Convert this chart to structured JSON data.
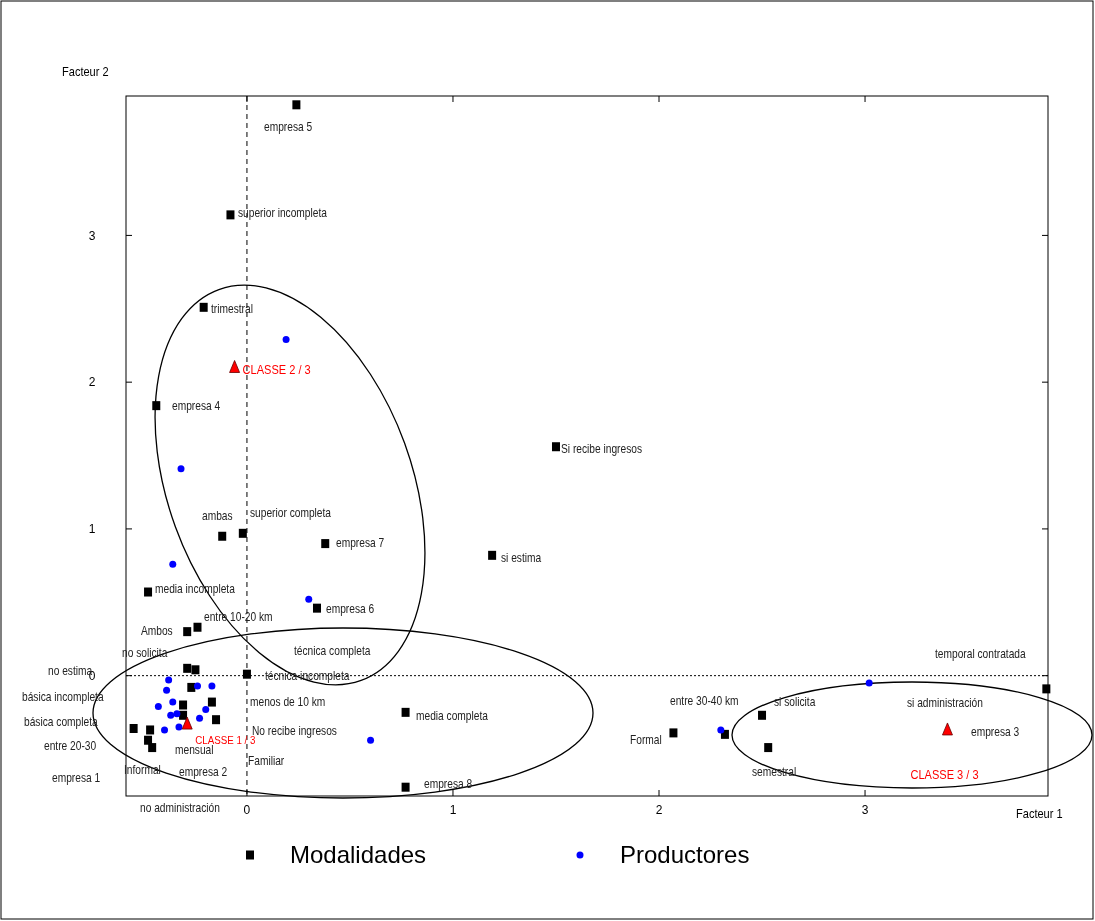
{
  "chart_data": {
    "type": "scatter",
    "xlabel": "Facteur 1",
    "ylabel": "Facteur 2",
    "xlim": [
      -0.587,
      3.888
    ],
    "ylim": [
      -0.82,
      3.95
    ],
    "xticks": [
      0,
      1,
      2,
      3
    ],
    "yticks": [
      0,
      1,
      2,
      3
    ],
    "grid": false,
    "legend": "bottom",
    "ref_lines": [
      {
        "axis": "x",
        "value": 0,
        "line_style": "dashed"
      },
      {
        "axis": "y",
        "value": 0,
        "line_style": "dotted"
      }
    ],
    "series": [
      {
        "name": "Modalidades",
        "color": "#000000",
        "marker": "square",
        "x": [
          0.24,
          -0.08,
          -0.21,
          -0.44,
          1.5,
          -0.12,
          -0.02,
          0.38,
          1.19,
          -0.48,
          0.34,
          -0.29,
          -0.24,
          -0.29,
          -0.25,
          0.0,
          -0.27,
          -0.31,
          -0.31,
          -0.17,
          -0.15,
          -0.55,
          -0.47,
          -0.48,
          -0.46,
          0.77,
          0.77,
          2.07,
          2.32,
          2.5,
          2.53,
          3.88
        ],
        "values": [
          3.89,
          3.14,
          2.51,
          1.84,
          1.56,
          0.95,
          0.97,
          0.9,
          0.82,
          0.57,
          0.46,
          0.3,
          0.33,
          0.05,
          0.04,
          0.01,
          -0.08,
          -0.2,
          -0.27,
          -0.18,
          -0.3,
          -0.36,
          -0.37,
          -0.44,
          -0.49,
          -0.25,
          -0.76,
          -0.39,
          -0.4,
          -0.27,
          -0.49,
          -0.09
        ]
      },
      {
        "name": "Productores",
        "color": "#0000ff",
        "marker": "circle",
        "x": [
          0.19,
          -0.32,
          -0.36,
          0.3,
          0.6,
          2.3,
          3.02,
          -0.38,
          -0.39,
          -0.43,
          -0.36,
          -0.34,
          -0.37,
          -0.4,
          -0.24,
          -0.17,
          -0.2,
          -0.23,
          -0.33
        ],
        "values": [
          2.29,
          1.41,
          0.76,
          0.52,
          -0.44,
          -0.37,
          -0.05,
          -0.03,
          -0.1,
          -0.21,
          -0.18,
          -0.26,
          -0.27,
          -0.37,
          -0.07,
          -0.07,
          -0.23,
          -0.29,
          -0.35
        ]
      },
      {
        "color": "#ff0000",
        "marker": "triangle",
        "x": [
          -0.29,
          -0.06,
          3.4
        ],
        "values": [
          -0.33,
          2.1,
          -0.37
        ],
        "value_labels": [
          "CLASSE 1 / 3",
          "CLASSE 2 / 3",
          "CLASSE 3 / 3"
        ]
      }
    ],
    "annotations": [
      "empresa 5",
      "superior incompleta",
      "trimestral",
      "empresa 4",
      "Si recibe ingresos",
      "ambas",
      "superior completa",
      "empresa 7",
      "si estima",
      "media incompleta",
      "empresa 6",
      "entre 10-20 km",
      "Ambos",
      "técnica completa",
      "no solicita",
      "técnica incompleta",
      "menos de 10 km",
      "No recibe ingresos",
      "Familiar",
      "mensual",
      "empresa 2",
      "Informal",
      "media completa",
      "empresa 8",
      "no administración",
      "no estima",
      "básica incompleta",
      "básica completa",
      "entre 20-30",
      "empresa 1",
      "Formal",
      "entre 30-40 km",
      "si solicita",
      "semestral",
      "temporal contratada",
      "si administración",
      "empresa 3"
    ]
  }
}
